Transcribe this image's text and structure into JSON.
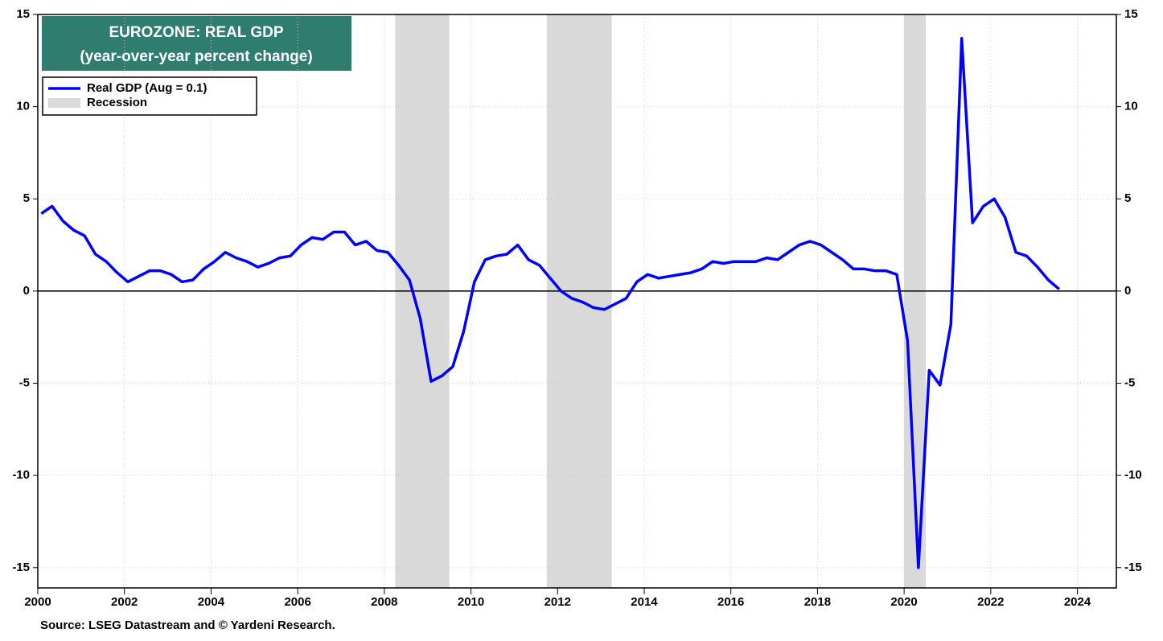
{
  "chart_data": {
    "type": "line",
    "title": "EUROZONE: REAL GDP",
    "subtitle": "(year-over-year percent change)",
    "source": "Source: LSEG Datastream and © Yardeni Research.",
    "recession_label": "Recession",
    "recession_color": "#d9d9d9",
    "recessions": [
      [
        2008.25,
        2009.5
      ],
      [
        2011.75,
        2013.25
      ],
      [
        2020.0,
        2020.5
      ]
    ],
    "xlim": [
      2000,
      2024.9
    ],
    "xticks": [
      2000,
      2002,
      2004,
      2006,
      2008,
      2010,
      2012,
      2014,
      2016,
      2018,
      2020,
      2022,
      2024
    ],
    "ylim": [
      -16.1,
      15
    ],
    "yticks": [
      -15,
      -10,
      -5,
      0,
      5,
      10,
      15
    ],
    "grid": true,
    "legend": "upper left",
    "x": [
      2000.08,
      2000.33,
      2000.58,
      2000.83,
      2001.08,
      2001.33,
      2001.58,
      2001.83,
      2002.08,
      2002.33,
      2002.58,
      2002.83,
      2003.08,
      2003.33,
      2003.58,
      2003.83,
      2004.08,
      2004.33,
      2004.58,
      2004.83,
      2005.08,
      2005.33,
      2005.58,
      2005.83,
      2006.08,
      2006.33,
      2006.58,
      2006.83,
      2007.08,
      2007.33,
      2007.58,
      2007.83,
      2008.08,
      2008.33,
      2008.58,
      2008.83,
      2009.08,
      2009.33,
      2009.58,
      2009.83,
      2010.08,
      2010.33,
      2010.58,
      2010.83,
      2011.08,
      2011.33,
      2011.58,
      2011.83,
      2012.08,
      2012.33,
      2012.58,
      2012.83,
      2013.08,
      2013.33,
      2013.58,
      2013.83,
      2014.08,
      2014.33,
      2014.58,
      2014.83,
      2015.08,
      2015.33,
      2015.58,
      2015.83,
      2016.08,
      2016.33,
      2016.58,
      2016.83,
      2017.08,
      2017.33,
      2017.58,
      2017.83,
      2018.08,
      2018.33,
      2018.58,
      2018.83,
      2019.08,
      2019.33,
      2019.58,
      2019.83,
      2020.08,
      2020.33,
      2020.58,
      2020.83,
      2021.08,
      2021.33,
      2021.58,
      2021.83,
      2022.08,
      2022.33,
      2022.58,
      2022.83,
      2023.08,
      2023.33,
      2023.58
    ],
    "series": [
      {
        "name": "Real GDP (Aug = 0.1)",
        "color": "#0000ff",
        "values": [
          4.2,
          4.6,
          3.8,
          3.3,
          3.0,
          2.0,
          1.6,
          1.0,
          0.5,
          0.8,
          1.1,
          1.1,
          0.9,
          0.5,
          0.6,
          1.2,
          1.6,
          2.1,
          1.8,
          1.6,
          1.3,
          1.5,
          1.8,
          1.9,
          2.5,
          2.9,
          2.8,
          3.2,
          3.2,
          2.5,
          2.7,
          2.2,
          2.1,
          1.4,
          0.6,
          -1.5,
          -4.9,
          -4.6,
          -4.1,
          -2.2,
          0.5,
          1.7,
          1.9,
          2.0,
          2.5,
          1.7,
          1.4,
          0.7,
          0.0,
          -0.4,
          -0.6,
          -0.9,
          -1.0,
          -0.7,
          -0.4,
          0.5,
          0.9,
          0.7,
          0.8,
          0.9,
          1.0,
          1.2,
          1.6,
          1.5,
          1.6,
          1.6,
          1.6,
          1.8,
          1.7,
          2.1,
          2.5,
          2.7,
          2.5,
          2.1,
          1.7,
          1.2,
          1.2,
          1.1,
          1.1,
          0.9,
          -2.7,
          -15.0,
          -4.3,
          -5.1,
          -1.8,
          13.7,
          3.7,
          4.6,
          5.0,
          4.0,
          2.1,
          1.9,
          1.3,
          0.6,
          0.1
        ]
      }
    ]
  }
}
